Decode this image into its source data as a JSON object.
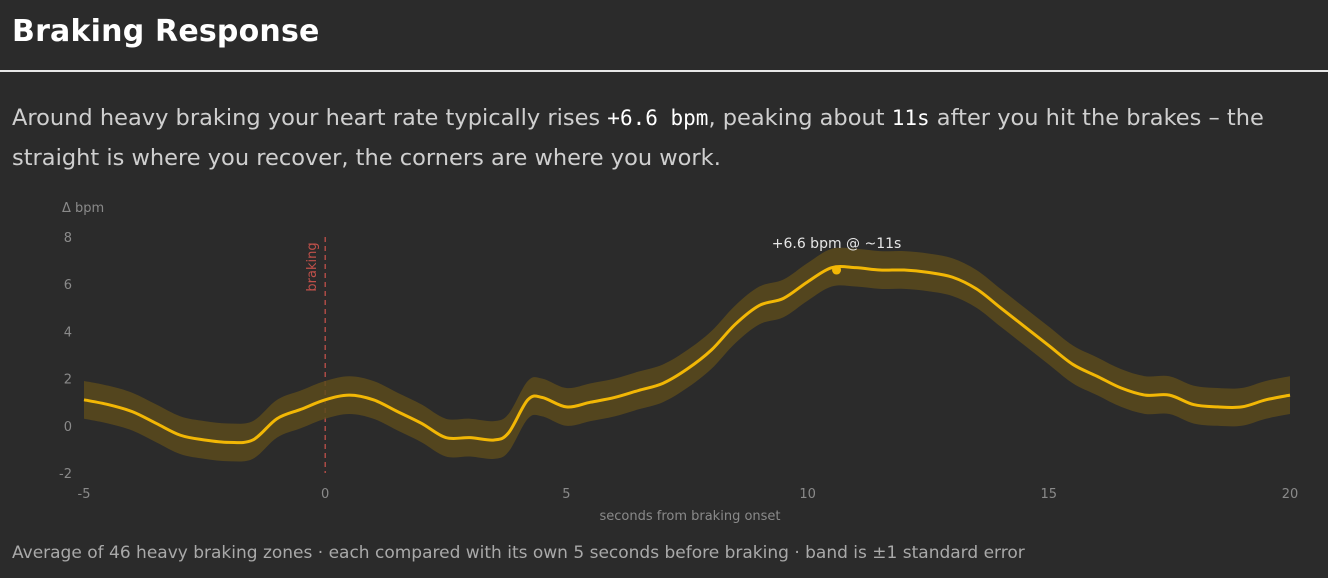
{
  "title": "Braking Response",
  "summary": {
    "part1": "Around heavy braking your heart rate typically rises ",
    "rise_value": "+6.6 bpm",
    "part2": ", peaking about ",
    "peak_time": "11s",
    "part3": " after you hit the brakes – the straight is where you recover, the corners are where you work."
  },
  "footnote": "Average of 46 heavy braking zones · each compared with its own 5 seconds before braking · band is ±1 standard error",
  "colors": {
    "line": "#f2b705",
    "band": "#5a4a1c",
    "marker_line": "#c0504a",
    "axis_text": "#8a8a8a",
    "label_text": "#e6e6e6"
  },
  "chart_data": {
    "type": "line",
    "xlabel": "seconds from braking onset",
    "ylabel": "Δ bpm",
    "xlim": [
      -5,
      20
    ],
    "ylim": [
      -2,
      8
    ],
    "x_ticks": [
      "-5",
      "0",
      "5",
      "10",
      "15",
      "20"
    ],
    "y_ticks": [
      "8",
      "6",
      "4",
      "2",
      "0",
      "-2"
    ],
    "grid": false,
    "marker": {
      "x": 0,
      "label": "braking"
    },
    "peak": {
      "x": 10.6,
      "y": 6.6,
      "label": "+6.6 bpm @ ~11s"
    },
    "band_half_width": 0.8,
    "series": [
      {
        "x": [
          -5,
          -4.5,
          -4,
          -3.5,
          -3,
          -2.5,
          -2,
          -1.5,
          -1,
          -0.5,
          0,
          0.5,
          1,
          1.5,
          2,
          2.5,
          3,
          3.5,
          3.8,
          4.2,
          4.5,
          5,
          5.5,
          6,
          6.5,
          7,
          7.5,
          8,
          8.5,
          9,
          9.5,
          10,
          10.5,
          11,
          11.5,
          12,
          12.5,
          13,
          13.5,
          14,
          14.5,
          15,
          15.5,
          16,
          16.5,
          17,
          17.5,
          18,
          18.5,
          19,
          19.5,
          20
        ],
        "y": [
          1.1,
          0.9,
          0.6,
          0.1,
          -0.4,
          -0.6,
          -0.7,
          -0.6,
          0.3,
          0.7,
          1.1,
          1.3,
          1.1,
          0.6,
          0.1,
          -0.5,
          -0.5,
          -0.6,
          -0.3,
          1.1,
          1.2,
          0.8,
          1.0,
          1.2,
          1.5,
          1.8,
          2.4,
          3.2,
          4.3,
          5.1,
          5.4,
          6.1,
          6.7,
          6.7,
          6.6,
          6.6,
          6.5,
          6.3,
          5.8,
          5.0,
          4.2,
          3.4,
          2.6,
          2.1,
          1.6,
          1.3,
          1.3,
          0.9,
          0.8,
          0.8,
          1.1,
          1.3
        ]
      }
    ]
  }
}
